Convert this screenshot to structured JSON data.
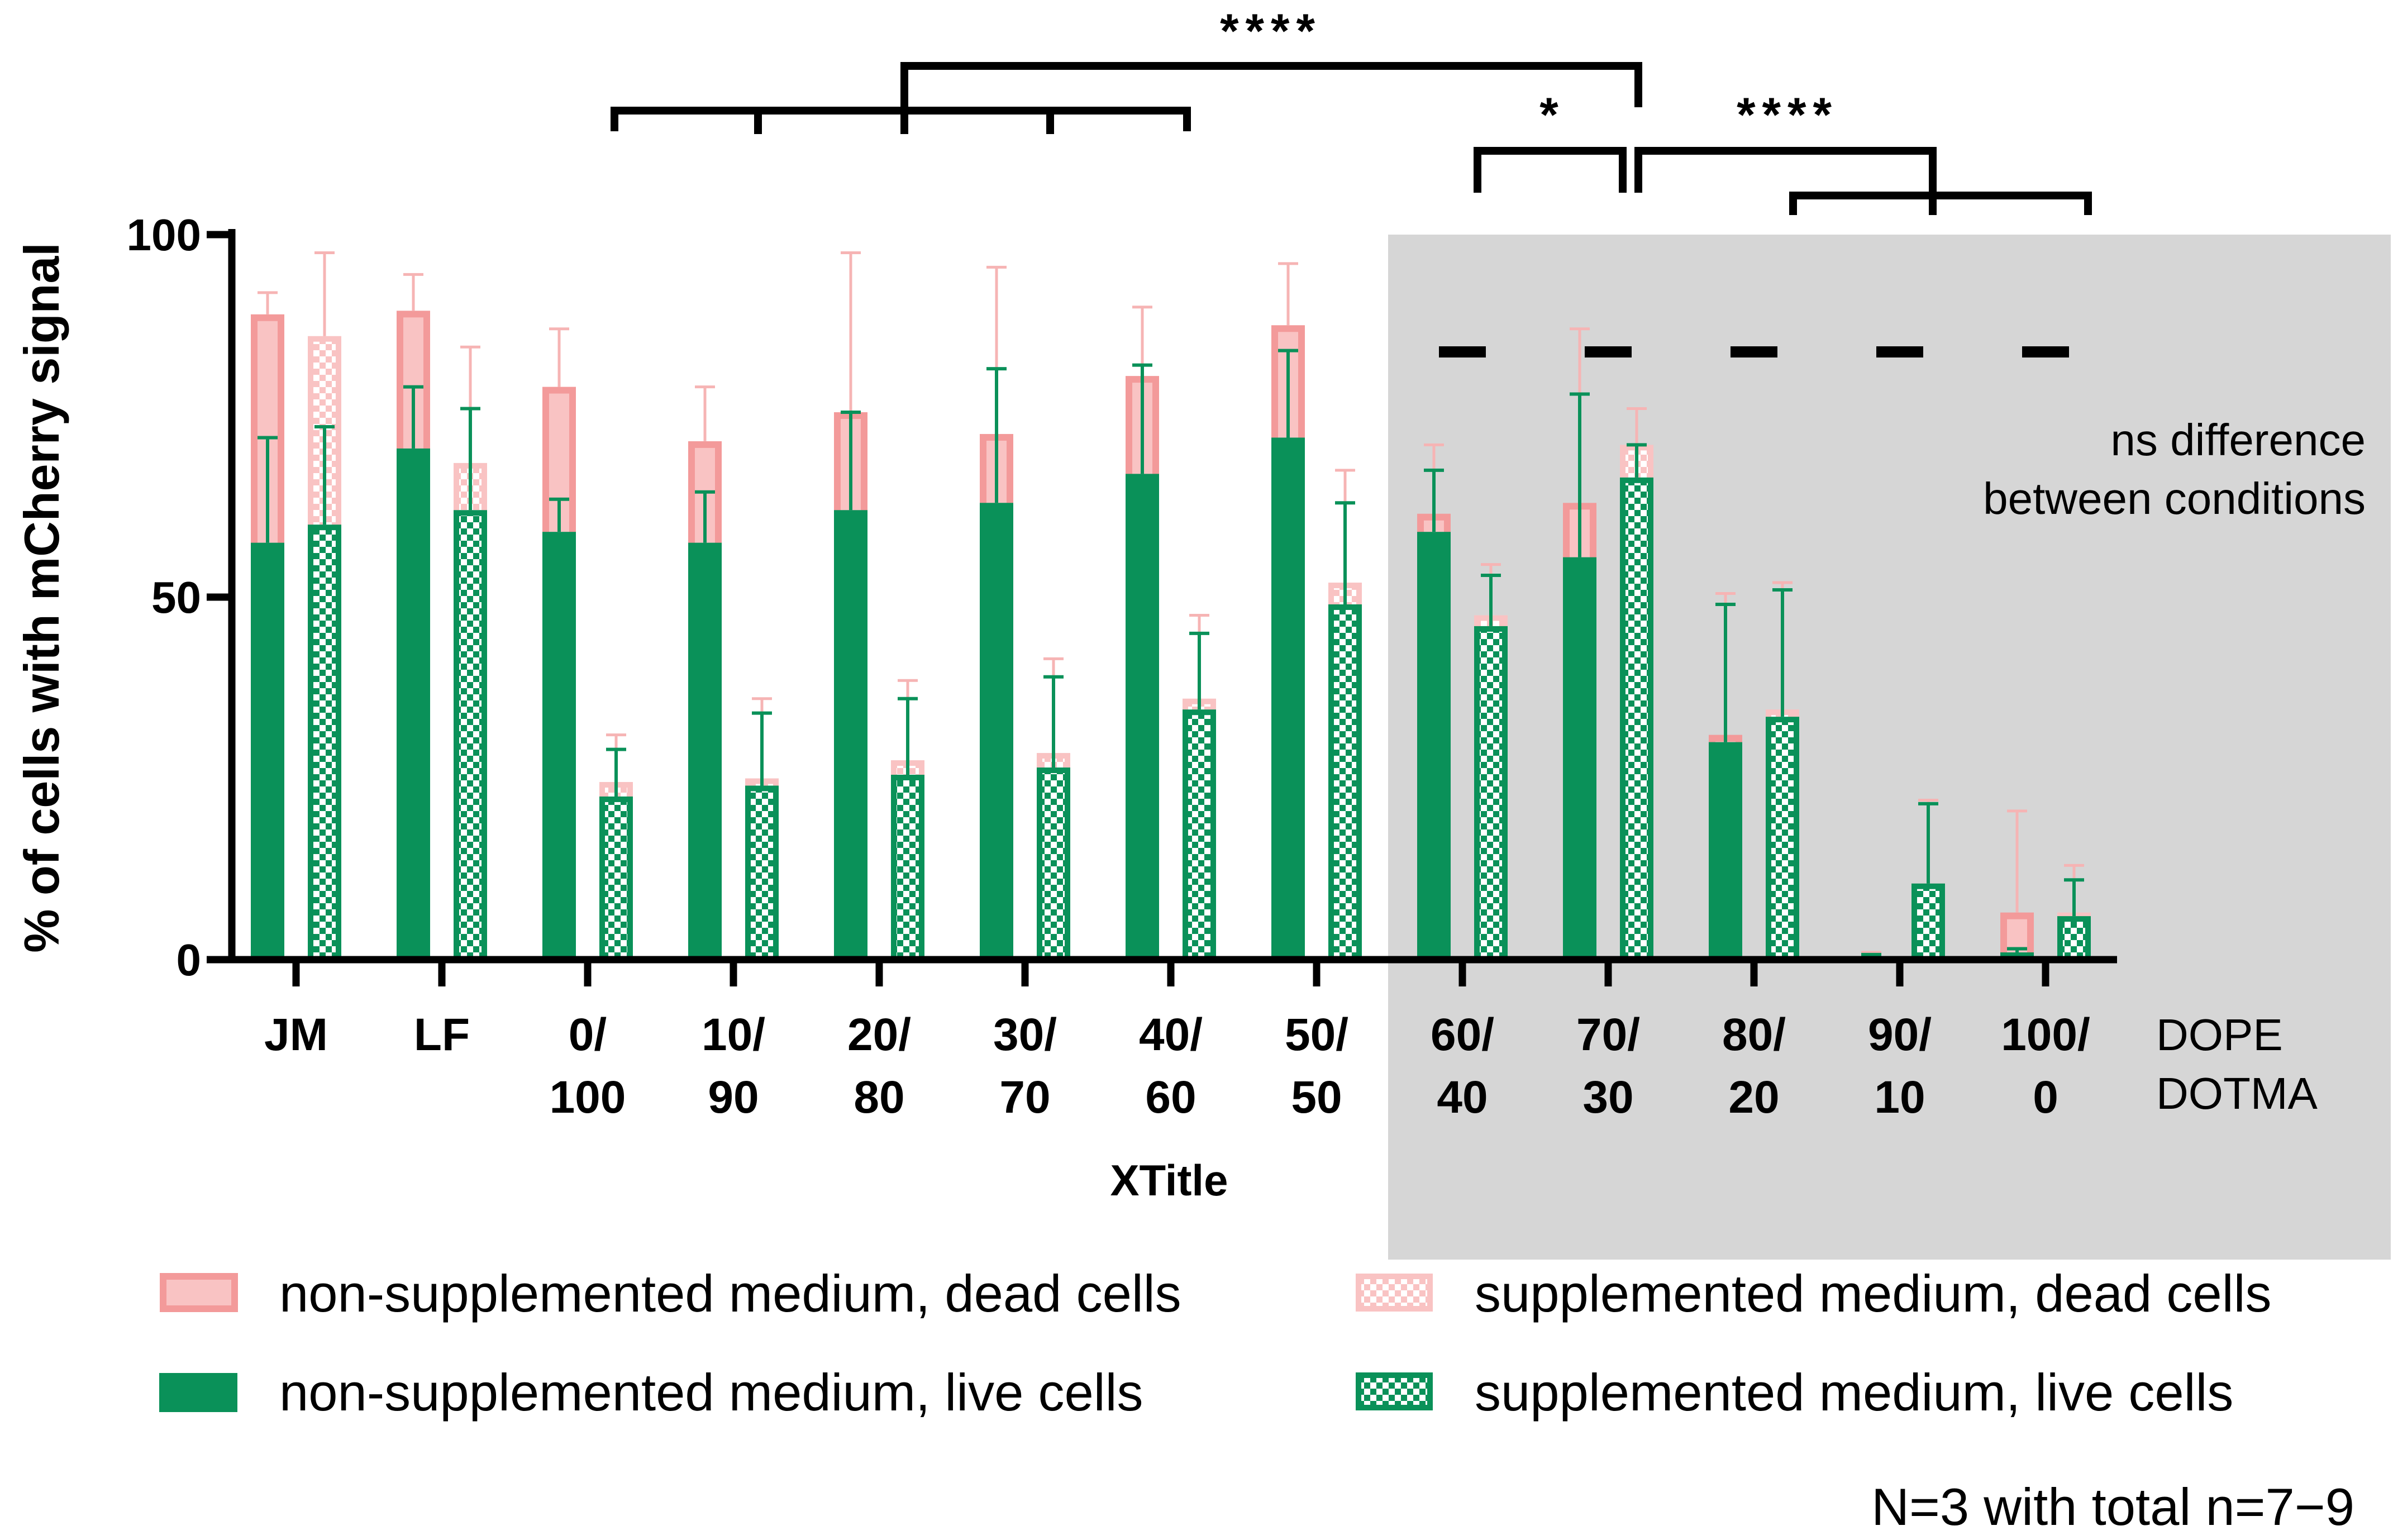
{
  "chart_data": {
    "type": "bar",
    "ylabel": "% of cells with mCherry signal",
    "xlabel": "XTitle",
    "ylim": [
      0,
      100
    ],
    "yticks": [
      0,
      50,
      100
    ],
    "categories": [
      {
        "line1": "JM",
        "line2": ""
      },
      {
        "line1": "LF",
        "line2": ""
      },
      {
        "line1": "0/",
        "line2": "100"
      },
      {
        "line1": "10/",
        "line2": "90"
      },
      {
        "line1": "20/",
        "line2": "80"
      },
      {
        "line1": "30/",
        "line2": "70"
      },
      {
        "line1": "40/",
        "line2": "60"
      },
      {
        "line1": "50/",
        "line2": "50"
      },
      {
        "line1": "60/",
        "line2": "40"
      },
      {
        "line1": "70/",
        "line2": "30"
      },
      {
        "line1": "80/",
        "line2": "20"
      },
      {
        "line1": "90/",
        "line2": "10"
      },
      {
        "line1": "100/",
        "line2": "0"
      }
    ],
    "row_labels": {
      "line1": "DOPE",
      "line2": "DOTMA"
    },
    "series": [
      {
        "name": "non-supplemented medium, dead cells",
        "kind": "dead",
        "group": "non-supplemented",
        "values": [
          89,
          89.5,
          79,
          71.5,
          75.5,
          72.5,
          80.5,
          87.5,
          61.5,
          63,
          31,
          0.5,
          6.5
        ],
        "errors": [
          92,
          94.5,
          87,
          79,
          97.5,
          95.5,
          90,
          96,
          71,
          87,
          50.5,
          1,
          20.5
        ]
      },
      {
        "name": "non-supplemented medium, live cells",
        "kind": "live",
        "group": "non-supplemented",
        "values": [
          57.5,
          70.5,
          59,
          57.5,
          62,
          63,
          67,
          72,
          59,
          55.5,
          30,
          0.5,
          1
        ],
        "errors": [
          72,
          79,
          63.5,
          64.5,
          75.5,
          81.5,
          82,
          84,
          67.5,
          78,
          49,
          0.7,
          1.5
        ]
      },
      {
        "name": "supplemented medium, dead cells",
        "kind": "dead",
        "group": "supplemented",
        "values": [
          86,
          68.5,
          24.5,
          25,
          27.5,
          28.5,
          36,
          52,
          47.5,
          71,
          34.5,
          10.5,
          6.5
        ],
        "errors": [
          97.5,
          84.5,
          31,
          36,
          38.5,
          41.5,
          47.5,
          67.5,
          54.5,
          76,
          52,
          22,
          13
        ]
      },
      {
        "name": "supplemented medium, live cells",
        "kind": "live",
        "group": "supplemented",
        "values": [
          60,
          62,
          22.5,
          24,
          25.5,
          26.5,
          34.5,
          49,
          46,
          66.5,
          33.5,
          10.5,
          6
        ],
        "errors": [
          73.5,
          76,
          29,
          34,
          36,
          39,
          45,
          63,
          53,
          71,
          51,
          21.5,
          11
        ]
      }
    ],
    "annotations": {
      "sig_top": "****",
      "sig_left": "*",
      "sig_right": "****",
      "ns_line1": "ns difference",
      "ns_line2": "between conditions",
      "note": "N=3 with total n=7−9"
    },
    "colors": {
      "live": "#0a9159",
      "dead_fill": "#f9c3c3",
      "dead_stroke": "#f39a9a",
      "live_err": "#0a9159",
      "dead_err": "#f6b4b4",
      "shade": "#d6d6d6"
    }
  }
}
